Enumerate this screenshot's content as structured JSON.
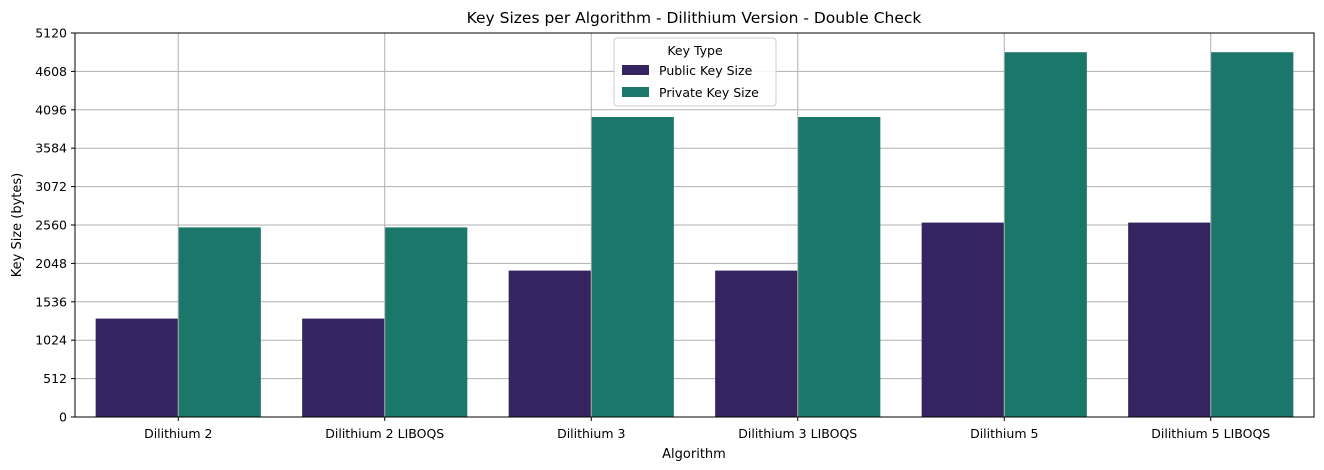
{
  "chart_data": {
    "type": "bar",
    "title": "Key Sizes per Algorithm - Dilithium Version - Double Check",
    "xlabel": "Algorithm",
    "ylabel": "Key Size (bytes)",
    "categories": [
      "Dilithium 2",
      "Dilithium 2 LIBOQS",
      "Dilithium 3",
      "Dilithium 3 LIBOQS",
      "Dilithium 5",
      "Dilithium 5 LIBOQS"
    ],
    "series": [
      {
        "name": "Public Key Size",
        "values": [
          1312,
          1312,
          1952,
          1952,
          2592,
          2592
        ],
        "color": "#35245f"
      },
      {
        "name": "Private Key Size",
        "values": [
          2528,
          2528,
          4000,
          4000,
          4864,
          4864
        ],
        "color": "#1b7769"
      }
    ],
    "ylim": [
      0,
      5120
    ],
    "yticks": [
      0,
      512,
      1024,
      1536,
      2048,
      2560,
      3072,
      3584,
      4096,
      4608,
      5120
    ],
    "grid": true,
    "legend": {
      "title": "Key Type",
      "position": "top-center"
    }
  }
}
